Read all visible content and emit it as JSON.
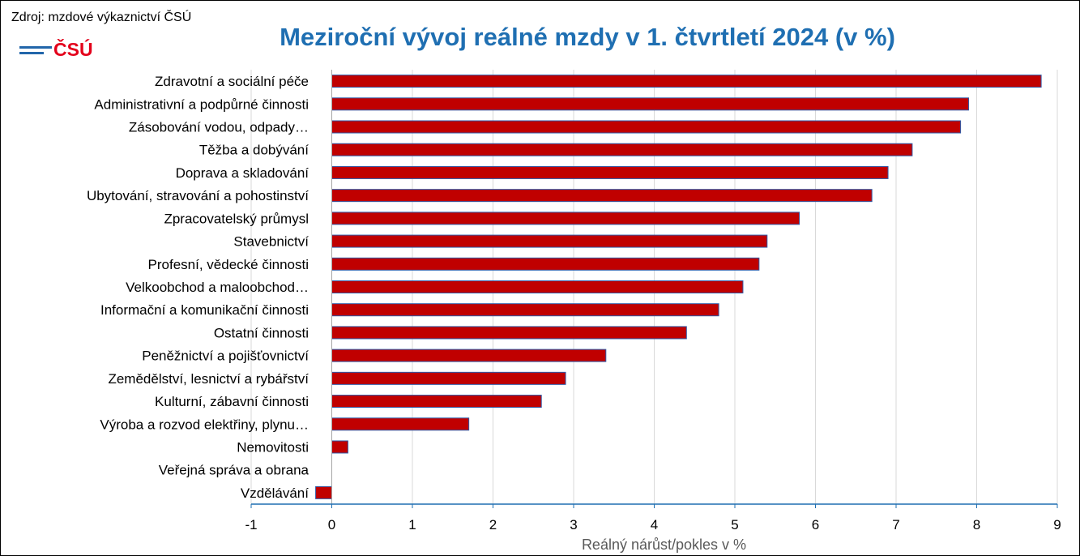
{
  "source": "Zdroj: mzdové výkaznictví ČSÚ",
  "logo": {
    "text": "ČSÚ",
    "color": "#e3001b",
    "line_color": "#2266aa"
  },
  "colors": {
    "bar": "#c00000",
    "bar_edge": "#2e5aa8",
    "title": "#1f6fb2",
    "axis": "#1f6fb2",
    "grid": "#d9d9d9"
  },
  "chart_data": {
    "type": "bar",
    "orientation": "horizontal",
    "title": "Meziroční vývoj reálné mzdy v 1. čtvrtletí 2024 (v %)",
    "xlabel": "Reálný nárůst/pokles v %",
    "ylabel": "",
    "xlim": [
      -1,
      9
    ],
    "xticks": [
      -1,
      0,
      1,
      2,
      3,
      4,
      5,
      6,
      7,
      8,
      9
    ],
    "grid": true,
    "categories": [
      "Zdravotní a sociální péče",
      "Administrativní a podpůrné činnosti",
      "Zásobování vodou, odpady…",
      "Těžba a dobývání",
      "Doprava a skladování",
      "Ubytování, stravování a pohostinství",
      "Zpracovatelský průmysl",
      "Stavebnictví",
      "Profesní, vědecké činnosti",
      "Velkoobchod a maloobchod…",
      "Informační a komunikační činnosti",
      "Ostatní činnosti",
      "Peněžnictví a pojišťovnictví",
      "Zemědělství, lesnictví a rybářství",
      "Kulturní, zábavní činnosti",
      "Výroba a rozvod elektřiny, plynu…",
      "Nemovitosti",
      "Veřejná správa a obrana",
      "Vzdělávání"
    ],
    "values": [
      8.8,
      7.9,
      7.8,
      7.2,
      6.9,
      6.7,
      5.8,
      5.4,
      5.3,
      5.1,
      4.8,
      4.4,
      3.4,
      2.9,
      2.6,
      1.7,
      0.2,
      0.0,
      -0.2
    ]
  }
}
